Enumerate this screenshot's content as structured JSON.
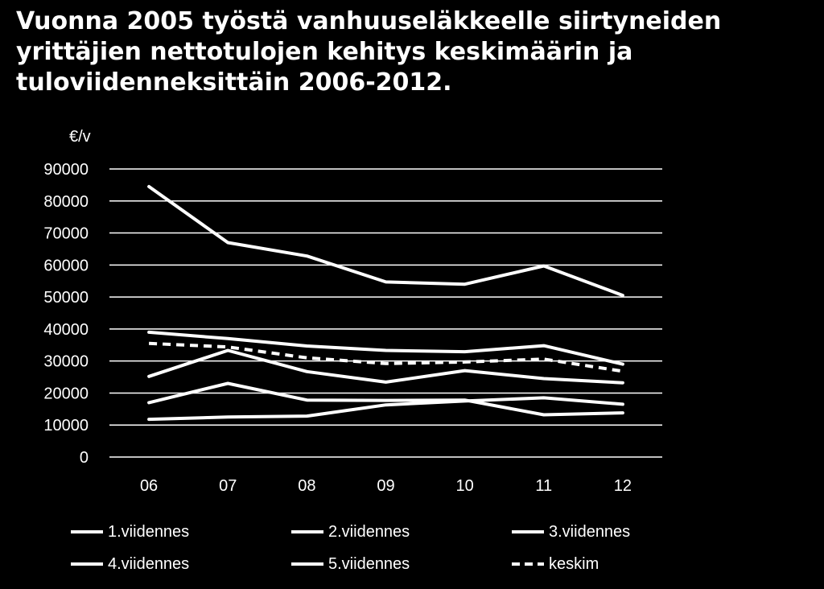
{
  "title_lines": [
    "Vuonna 2005 työstä vanhuuseläkkeelle siirtyneiden",
    "yrittäjien nettotulojen kehitys keskimäärin ja",
    "tuloviidenneksittäin 2006-2012."
  ],
  "colors": {
    "background": "#000000",
    "foreground": "#ffffff"
  },
  "chart_data": {
    "type": "line",
    "title": "Vuonna 2005 työstä vanhuuseläkkeelle siirtyneiden yrittäjien nettotulojen kehitys keskimäärin ja tuloviidenneksittäin 2006-2012.",
    "ylabel": "€/v",
    "xlabel": "",
    "categories": [
      "06",
      "07",
      "08",
      "09",
      "10",
      "11",
      "12"
    ],
    "ylim": [
      0,
      90000
    ],
    "yticks": [
      "0",
      "10000",
      "20000",
      "30000",
      "40000",
      "50000",
      "60000",
      "70000",
      "80000",
      "90000"
    ],
    "grid": true,
    "legend_position": "bottom",
    "series": [
      {
        "name": "1.viidennes",
        "style": "solid",
        "values": [
          11800,
          12500,
          12800,
          16300,
          17500,
          18500,
          16500
        ]
      },
      {
        "name": "2.viidennes",
        "style": "solid",
        "values": [
          17000,
          23000,
          17800,
          17700,
          17800,
          13200,
          13800
        ]
      },
      {
        "name": "3.viidennes",
        "style": "solid",
        "values": [
          25200,
          33300,
          26700,
          23400,
          27000,
          24500,
          23200
        ]
      },
      {
        "name": "4.viidennes",
        "style": "solid",
        "values": [
          39000,
          37000,
          34700,
          33300,
          32900,
          34800,
          29000
        ]
      },
      {
        "name": "5.viidennes",
        "style": "solid",
        "values": [
          84500,
          67000,
          62800,
          54700,
          54000,
          59700,
          50500
        ]
      },
      {
        "name": "keskim",
        "style": "dashed",
        "values": [
          35500,
          34400,
          31000,
          29200,
          29700,
          30600,
          26800
        ]
      }
    ]
  }
}
